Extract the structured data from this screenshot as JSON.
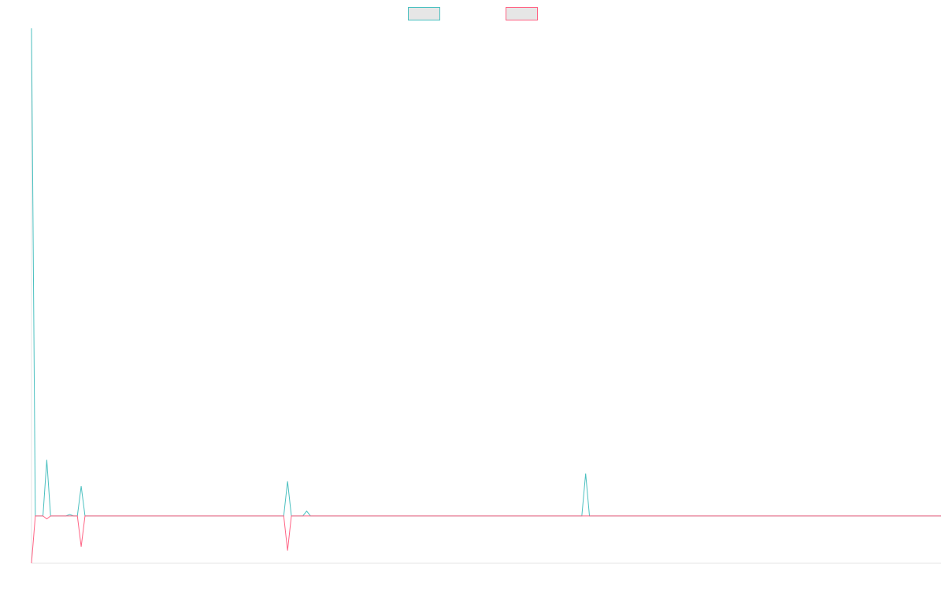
{
  "chart_data": {
    "type": "line",
    "x": [
      0,
      1,
      3,
      4,
      5,
      9,
      10,
      11,
      12,
      13,
      14,
      66,
      67,
      68,
      71,
      72,
      73,
      144,
      145,
      146,
      238
    ],
    "series": [
      {
        "color": "#4bc0c0",
        "values": [
          100,
          0,
          0,
          11.5,
          0,
          0,
          0.3,
          0,
          0,
          6.1,
          0,
          0,
          7.1,
          0,
          0,
          1,
          0,
          0,
          8.7,
          0,
          0
        ]
      },
      {
        "color": "#ff6384",
        "values": [
          -9.7,
          0,
          0,
          -0.6,
          0,
          0,
          0,
          0,
          0,
          -6.3,
          0,
          0,
          -7.1,
          0,
          0,
          0,
          0,
          0,
          0,
          0,
          0
        ]
      }
    ],
    "xlim": [
      0,
      238
    ],
    "ylim": [
      -9.7,
      100
    ],
    "legend": "top"
  }
}
